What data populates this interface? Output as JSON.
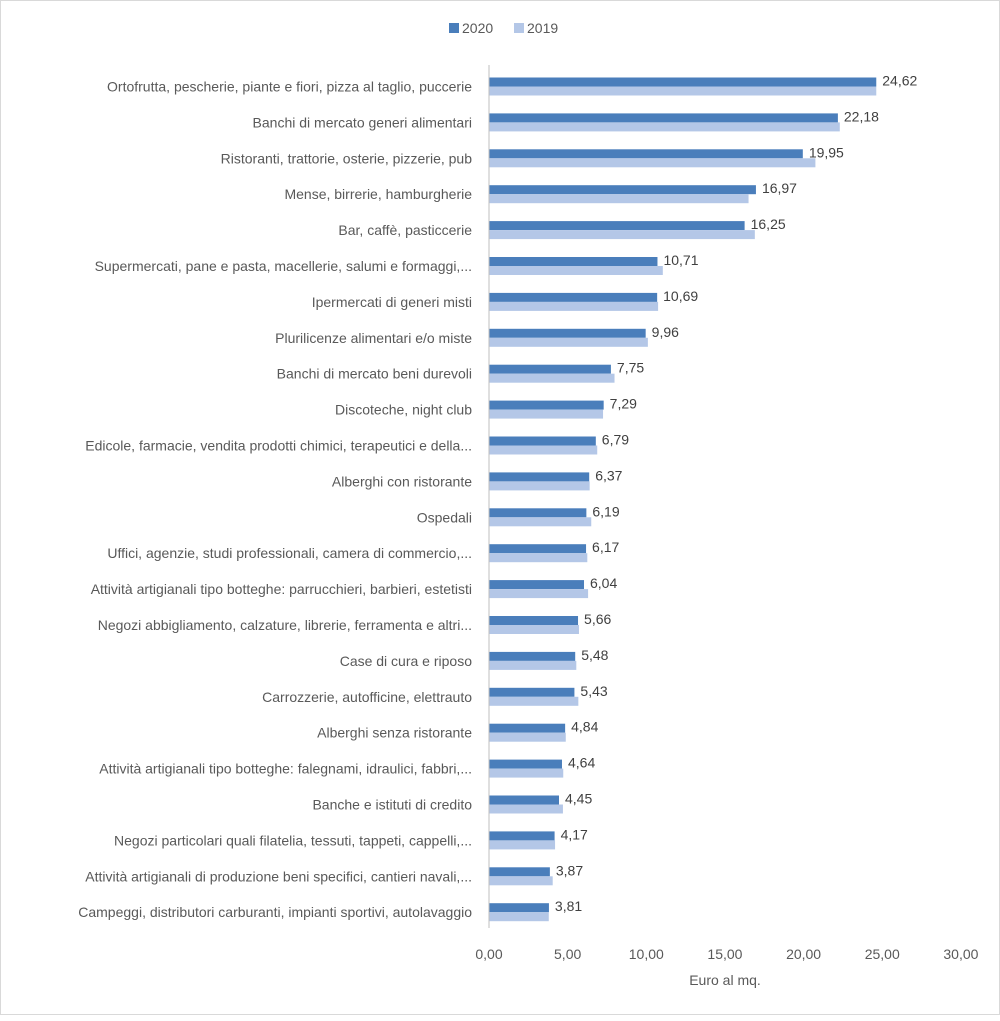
{
  "chart_data": {
    "type": "bar",
    "orientation": "horizontal",
    "title": "",
    "xlabel": "Euro al mq.",
    "ylabel": "",
    "xlim": [
      0,
      30
    ],
    "x_ticks": [
      "0,00",
      "5,00",
      "10,00",
      "15,00",
      "20,00",
      "25,00",
      "30,00"
    ],
    "legend_position": "top-center",
    "grid": false,
    "categories": [
      "Ortofrutta, pescherie, piante e fiori, pizza al taglio, puccerie",
      "Banchi di mercato generi alimentari",
      "Ristoranti, trattorie, osterie, pizzerie, pub",
      "Mense, birrerie, hamburgherie",
      "Bar, caffè, pasticcerie",
      "Supermercati, pane e pasta, macellerie, salumi e formaggi,...",
      "Ipermercati di generi misti",
      "Plurilicenze alimentari e/o miste",
      "Banchi di mercato beni durevoli",
      "Discoteche, night club",
      "Edicole, farmacie, vendita prodotti chimici, terapeutici e della...",
      "Alberghi con ristorante",
      "Ospedali",
      "Uffici, agenzie, studi professionali, camera di commercio,...",
      "Attività artigianali tipo botteghe: parrucchieri, barbieri, estetisti",
      "Negozi abbigliamento, calzature, librerie, ferramenta e altri...",
      "Case di cura e riposo",
      "Carrozzerie, autofficine, elettrauto",
      "Alberghi senza ristorante",
      "Attività artigianali tipo botteghe: falegnami, idraulici, fabbri,...",
      "Banche e istituti di credito",
      "Negozi particolari quali filatelia, tessuti, tappeti, cappelli,...",
      "Attività artigianali di produzione beni specifici, cantieri navali,...",
      "Campeggi, distributori carburanti, impianti sportivi, autolavaggio"
    ],
    "series": [
      {
        "name": "2020",
        "color": "#4a7ebb",
        "values": [
          24.62,
          22.18,
          19.95,
          16.97,
          16.25,
          10.71,
          10.69,
          9.96,
          7.75,
          7.29,
          6.79,
          6.37,
          6.19,
          6.17,
          6.04,
          5.66,
          5.48,
          5.43,
          4.84,
          4.64,
          4.45,
          4.17,
          3.87,
          3.81
        ],
        "labels": [
          "24,62",
          "22,18",
          "19,95",
          "16,97",
          "16,25",
          "10,71",
          "10,69",
          "9,96",
          "7,75",
          "7,29",
          "6,79",
          "6,37",
          "6,19",
          "6,17",
          "6,04",
          "5,66",
          "5,48",
          "5,43",
          "4,84",
          "4,64",
          "4,45",
          "4,17",
          "3,87",
          "3,81"
        ]
      },
      {
        "name": "2019",
        "color": "#b4c7e7",
        "values": [
          24.62,
          22.3,
          20.75,
          16.5,
          16.9,
          11.05,
          10.75,
          10.1,
          7.98,
          7.25,
          6.88,
          6.4,
          6.5,
          6.25,
          6.3,
          5.72,
          5.55,
          5.68,
          4.88,
          4.72,
          4.7,
          4.2,
          4.05,
          3.8
        ]
      }
    ]
  }
}
